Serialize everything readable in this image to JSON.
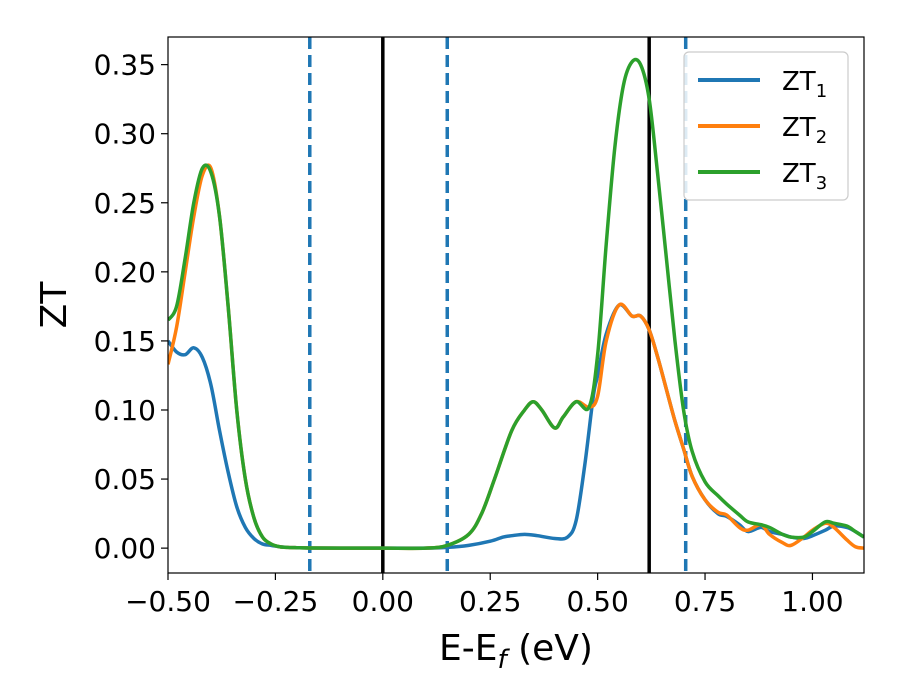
{
  "chart_data": {
    "type": "line",
    "xlabel": "E-E",
    "xlabel_subscript": "f",
    "xlabel_unit": "(eV)",
    "ylabel": "ZT",
    "xlim": [
      -0.5,
      1.12
    ],
    "ylim": [
      -0.018,
      0.37
    ],
    "xticks": [
      -0.5,
      -0.25,
      0.0,
      0.25,
      0.5,
      0.75,
      1.0
    ],
    "xtick_labels": [
      "−0.50",
      "−0.25",
      "0.00",
      "0.25",
      "0.50",
      "0.75",
      "1.00"
    ],
    "yticks": [
      0.0,
      0.05,
      0.1,
      0.15,
      0.2,
      0.25,
      0.3,
      0.35
    ],
    "ytick_labels": [
      "0.00",
      "0.05",
      "0.10",
      "0.15",
      "0.20",
      "0.25",
      "0.30",
      "0.35"
    ],
    "grid": false,
    "legend_position": "top-right",
    "vertical_lines": [
      {
        "x": -0.17,
        "style": "dashed",
        "color": "#1f77b4"
      },
      {
        "x": 0.0,
        "style": "solid",
        "color": "#000000"
      },
      {
        "x": 0.15,
        "style": "dashed",
        "color": "#1f77b4"
      },
      {
        "x": 0.62,
        "style": "solid",
        "color": "#000000"
      },
      {
        "x": 0.705,
        "style": "dashed",
        "color": "#1f77b4"
      }
    ],
    "series": [
      {
        "name": "ZT",
        "subscript": "1",
        "color": "#1f77b4",
        "x": [
          -0.5,
          -0.48,
          -0.46,
          -0.44,
          -0.42,
          -0.4,
          -0.38,
          -0.36,
          -0.34,
          -0.32,
          -0.3,
          -0.28,
          -0.26,
          -0.24,
          -0.22,
          -0.2,
          -0.17,
          -0.1,
          0.0,
          0.1,
          0.15,
          0.2,
          0.25,
          0.28,
          0.3,
          0.33,
          0.36,
          0.4,
          0.43,
          0.45,
          0.47,
          0.49,
          0.5,
          0.52,
          0.55,
          0.58,
          0.6,
          0.62,
          0.64,
          0.66,
          0.68,
          0.7,
          0.72,
          0.75,
          0.78,
          0.8,
          0.83,
          0.85,
          0.88,
          0.9,
          0.93,
          0.95,
          0.98,
          1.0,
          1.03,
          1.05,
          1.08,
          1.1,
          1.12
        ],
        "y": [
          0.15,
          0.142,
          0.14,
          0.145,
          0.138,
          0.118,
          0.085,
          0.055,
          0.03,
          0.015,
          0.007,
          0.003,
          0.002,
          0.001,
          0.0005,
          0.0003,
          0.0001,
          0.0,
          0.0,
          0.0,
          0.0005,
          0.002,
          0.005,
          0.008,
          0.009,
          0.01,
          0.009,
          0.007,
          0.008,
          0.02,
          0.06,
          0.11,
          0.125,
          0.155,
          0.176,
          0.168,
          0.168,
          0.158,
          0.138,
          0.115,
          0.092,
          0.072,
          0.052,
          0.035,
          0.025,
          0.023,
          0.017,
          0.012,
          0.015,
          0.012,
          0.01,
          0.008,
          0.007,
          0.009,
          0.013,
          0.016,
          0.015,
          0.012,
          0.008
        ]
      },
      {
        "name": "ZT",
        "subscript": "2",
        "color": "#ff7f0e",
        "x": [
          -0.5,
          -0.48,
          -0.46,
          -0.44,
          -0.42,
          -0.4,
          -0.38,
          -0.36,
          -0.34,
          -0.32,
          -0.3,
          -0.28,
          -0.26,
          -0.24,
          -0.22,
          -0.2,
          -0.17,
          -0.1,
          0.0,
          0.1,
          0.15,
          0.2,
          0.23,
          0.26,
          0.3,
          0.33,
          0.35,
          0.37,
          0.4,
          0.42,
          0.45,
          0.48,
          0.5,
          0.52,
          0.55,
          0.58,
          0.6,
          0.62,
          0.64,
          0.66,
          0.68,
          0.7,
          0.72,
          0.75,
          0.78,
          0.8,
          0.83,
          0.85,
          0.88,
          0.9,
          0.93,
          0.95,
          0.98,
          1.0,
          1.03,
          1.05,
          1.08,
          1.1,
          1.12
        ],
        "y": [
          0.133,
          0.16,
          0.2,
          0.24,
          0.27,
          0.275,
          0.24,
          0.175,
          0.1,
          0.05,
          0.022,
          0.008,
          0.003,
          0.001,
          0.0005,
          0.0003,
          0.0001,
          0.0,
          0.0,
          0.0,
          0.002,
          0.01,
          0.025,
          0.05,
          0.085,
          0.1,
          0.106,
          0.1,
          0.087,
          0.095,
          0.106,
          0.102,
          0.11,
          0.15,
          0.176,
          0.168,
          0.168,
          0.158,
          0.138,
          0.115,
          0.092,
          0.072,
          0.052,
          0.035,
          0.026,
          0.024,
          0.015,
          0.013,
          0.017,
          0.01,
          0.004,
          0.002,
          0.008,
          0.013,
          0.018,
          0.015,
          0.006,
          0.001,
          0.0
        ]
      },
      {
        "name": "ZT",
        "subscript": "3",
        "color": "#2ca02c",
        "x": [
          -0.5,
          -0.48,
          -0.46,
          -0.44,
          -0.42,
          -0.4,
          -0.38,
          -0.36,
          -0.34,
          -0.32,
          -0.3,
          -0.28,
          -0.26,
          -0.24,
          -0.22,
          -0.2,
          -0.17,
          -0.1,
          0.0,
          0.1,
          0.15,
          0.2,
          0.23,
          0.26,
          0.3,
          0.33,
          0.35,
          0.37,
          0.4,
          0.42,
          0.45,
          0.48,
          0.5,
          0.52,
          0.54,
          0.56,
          0.58,
          0.6,
          0.62,
          0.64,
          0.66,
          0.68,
          0.7,
          0.72,
          0.75,
          0.78,
          0.8,
          0.83,
          0.85,
          0.88,
          0.9,
          0.93,
          0.95,
          0.98,
          1.0,
          1.03,
          1.05,
          1.08,
          1.1,
          1.12
        ],
        "y": [
          0.165,
          0.175,
          0.21,
          0.25,
          0.275,
          0.272,
          0.24,
          0.175,
          0.1,
          0.05,
          0.022,
          0.008,
          0.003,
          0.001,
          0.0005,
          0.0003,
          0.0001,
          0.0,
          0.0,
          0.0,
          0.002,
          0.01,
          0.025,
          0.05,
          0.085,
          0.1,
          0.106,
          0.1,
          0.087,
          0.095,
          0.106,
          0.102,
          0.14,
          0.22,
          0.29,
          0.335,
          0.352,
          0.35,
          0.325,
          0.27,
          0.21,
          0.15,
          0.1,
          0.07,
          0.048,
          0.038,
          0.032,
          0.024,
          0.019,
          0.017,
          0.015,
          0.01,
          0.008,
          0.008,
          0.012,
          0.019,
          0.018,
          0.016,
          0.012,
          0.008
        ]
      }
    ]
  }
}
